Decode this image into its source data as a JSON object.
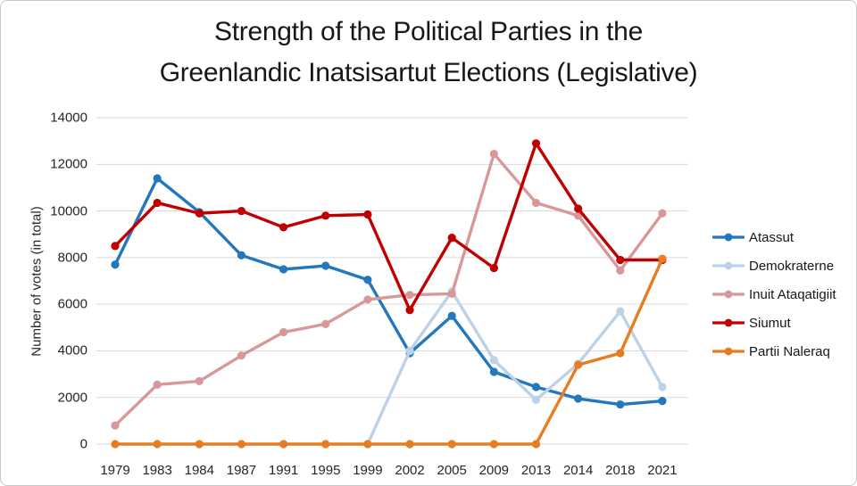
{
  "header": {
    "title_line1": "Strength of the Political Parties in the",
    "title_line2": "Greenlandic Inatsisartut Elections (Legislative)"
  },
  "chart_data": {
    "type": "line",
    "title": "Strength of the Political Parties in the Greenlandic Inatsisartut Elections (Legislative)",
    "xlabel": "",
    "ylabel": "Number of votes (in total)",
    "ylim": [
      0,
      14000
    ],
    "y_ticks": [
      14000,
      12000,
      10000,
      8000,
      6000,
      4000,
      2000,
      0
    ],
    "grid": true,
    "legend_position": "right",
    "categories": [
      "1979",
      "1983",
      "1984",
      "1987",
      "1991",
      "1995",
      "1999",
      "2002",
      "2005",
      "2009",
      "2013",
      "2014",
      "2018",
      "2021"
    ],
    "series": [
      {
        "name": "Atassut",
        "color": "#2277BD",
        "values": [
          7700,
          11400,
          9950,
          8100,
          7500,
          7650,
          7050,
          3900,
          5500,
          3100,
          2450,
          1950,
          1700,
          1850
        ]
      },
      {
        "name": "Demokraterne",
        "color": "#BDD2E6",
        "values": [
          null,
          null,
          null,
          null,
          null,
          null,
          0,
          4000,
          6550,
          3600,
          1900,
          3450,
          5700,
          2450
        ]
      },
      {
        "name": "Inuit Ataqatigiit",
        "color": "#D89899",
        "values": [
          800,
          2550,
          2700,
          3800,
          4800,
          5150,
          6200,
          6400,
          6450,
          12450,
          10350,
          9800,
          7450,
          9900
        ]
      },
      {
        "name": "Siumut",
        "color": "#C00000",
        "values": [
          8500,
          10350,
          9900,
          10000,
          9300,
          9800,
          9850,
          5750,
          8850,
          7550,
          12900,
          10100,
          7900,
          7900
        ]
      },
      {
        "name": "Partii Naleraq",
        "color": "#E67D22",
        "values": [
          0,
          0,
          0,
          0,
          0,
          0,
          0,
          0,
          0,
          0,
          0,
          3400,
          3900,
          7950
        ]
      }
    ],
    "gridline_color": "#D9D9D9"
  }
}
